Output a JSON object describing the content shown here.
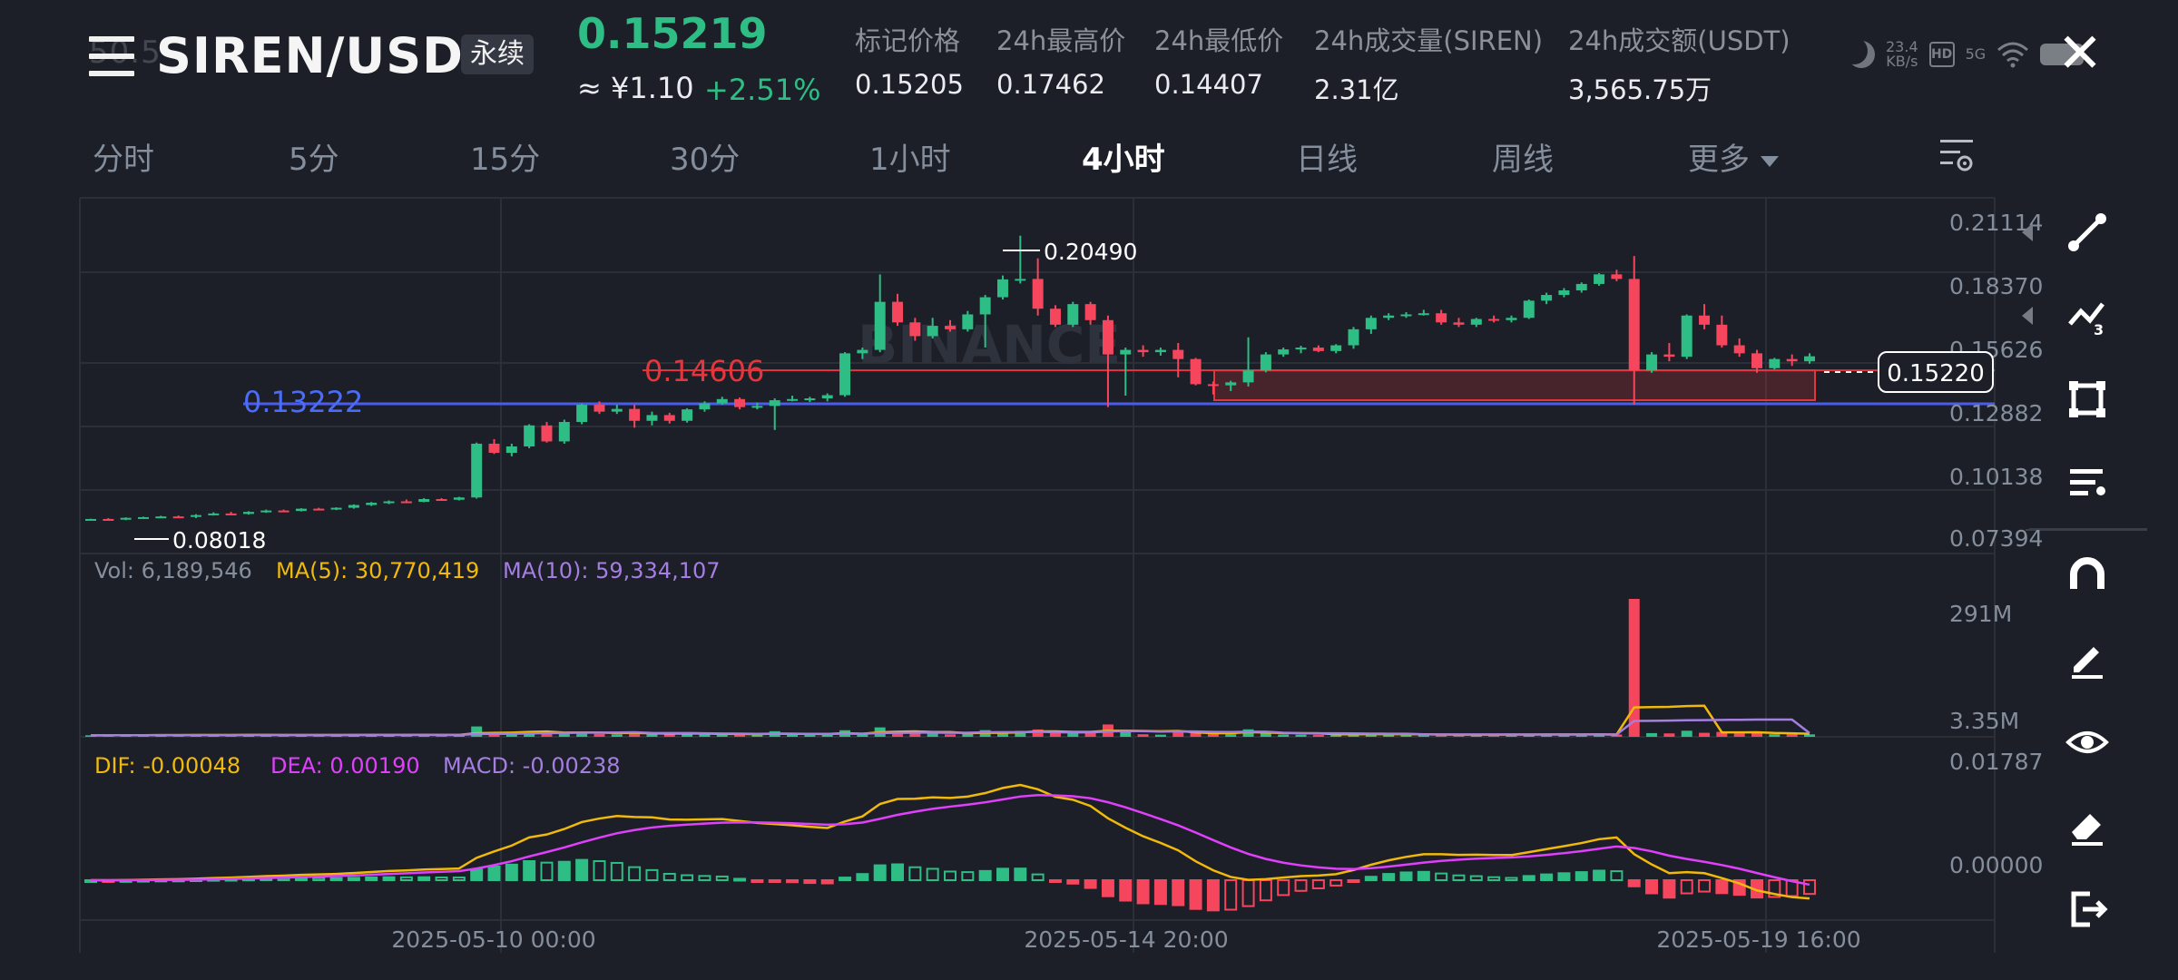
{
  "header": {
    "ghost_text": "50.5",
    "symbol": "SIREN/USDT",
    "contract_type": "永续",
    "last_price": "0.15219",
    "cny_price": "≈ ¥1.10",
    "change_pct": "+2.51%",
    "stats": [
      {
        "label": "标记价格",
        "value": "0.15205"
      },
      {
        "label": "24h最高价",
        "value": "0.17462"
      },
      {
        "label": "24h最低价",
        "value": "0.14407"
      },
      {
        "label": "24h成交量(SIREN)",
        "value": "2.31亿"
      },
      {
        "label": "24h成交额(USDT)",
        "value": "3,565.75万"
      }
    ]
  },
  "status_bar": {
    "speed": "23.4",
    "speed_unit": "KB/s",
    "hd": "HD",
    "network": "5G"
  },
  "tabs": {
    "items": [
      "分时",
      "5分",
      "15分",
      "30分",
      "1小时",
      "4小时",
      "日线",
      "周线",
      "更多"
    ],
    "active": "4小时"
  },
  "colors": {
    "up": "#2ebd85",
    "down": "#f6465d",
    "background": "#1c1f27",
    "grid": "#2b2f38",
    "ma5": "#f0b90b",
    "ma10": "#a47ee0",
    "dif": "#f0b90b",
    "dea": "#e040fb",
    "line_red": "#e4363d",
    "line_blue": "#4a5cf0"
  },
  "chart_data": {
    "type": "candlestick",
    "price_axis": [
      "0.21114",
      "0.18370",
      "0.15626",
      "0.12882",
      "0.10138",
      "0.07394"
    ],
    "price_range": [
      0.07394,
      0.21114
    ],
    "current_price_tag": "0.15220",
    "high_marker": "0.20490",
    "low_marker": "0.08018",
    "horizontal_lines": [
      {
        "label": "0.14606",
        "value": 0.14606,
        "color": "#e4363d"
      },
      {
        "label": "0.13222",
        "value": 0.13222,
        "color": "#4a5cf0"
      }
    ],
    "watermark": "BINANCE",
    "x_labels": [
      "2025-05-10 00:00",
      "2025-05-14 20:00",
      "2025-05-19 16:00"
    ],
    "candles": [
      [
        0.081,
        0.0812,
        0.0806,
        0.0811
      ],
      [
        0.0811,
        0.0815,
        0.0808,
        0.0808
      ],
      [
        0.0808,
        0.0818,
        0.0806,
        0.0816
      ],
      [
        0.0816,
        0.0821,
        0.0812,
        0.0819
      ],
      [
        0.0819,
        0.0825,
        0.0815,
        0.0822
      ],
      [
        0.0822,
        0.0826,
        0.0816,
        0.082
      ],
      [
        0.082,
        0.0832,
        0.0815,
        0.0828
      ],
      [
        0.0828,
        0.084,
        0.0826,
        0.0835
      ],
      [
        0.0835,
        0.0842,
        0.0828,
        0.0833
      ],
      [
        0.0833,
        0.0845,
        0.083,
        0.0842
      ],
      [
        0.0842,
        0.0852,
        0.0838,
        0.0848
      ],
      [
        0.0848,
        0.0852,
        0.0842,
        0.0846
      ],
      [
        0.0846,
        0.0858,
        0.0844,
        0.0856
      ],
      [
        0.0856,
        0.086,
        0.085,
        0.0854
      ],
      [
        0.0854,
        0.0862,
        0.085,
        0.086
      ],
      [
        0.086,
        0.0875,
        0.0856,
        0.0872
      ],
      [
        0.0872,
        0.0885,
        0.0868,
        0.0882
      ],
      [
        0.0882,
        0.0892,
        0.0876,
        0.0888
      ],
      [
        0.0888,
        0.0896,
        0.0882,
        0.0886
      ],
      [
        0.0886,
        0.0902,
        0.0884,
        0.0898
      ],
      [
        0.0898,
        0.0902,
        0.089,
        0.0895
      ],
      [
        0.0895,
        0.0908,
        0.0892,
        0.0905
      ],
      [
        0.0905,
        0.1145,
        0.09,
        0.114
      ],
      [
        0.114,
        0.116,
        0.1095,
        0.11
      ],
      [
        0.11,
        0.114,
        0.1085,
        0.1128
      ],
      [
        0.1128,
        0.1225,
        0.112,
        0.122
      ],
      [
        0.122,
        0.1235,
        0.1145,
        0.115
      ],
      [
        0.115,
        0.1245,
        0.114,
        0.1235
      ],
      [
        0.1235,
        0.1315,
        0.1225,
        0.131
      ],
      [
        0.131,
        0.1325,
        0.127,
        0.128
      ],
      [
        0.128,
        0.131,
        0.127,
        0.1292
      ],
      [
        0.1292,
        0.131,
        0.121,
        0.124
      ],
      [
        0.124,
        0.128,
        0.122,
        0.1265
      ],
      [
        0.1265,
        0.1275,
        0.1228,
        0.124
      ],
      [
        0.124,
        0.1295,
        0.1232,
        0.129
      ],
      [
        0.129,
        0.1325,
        0.128,
        0.1316
      ],
      [
        0.1316,
        0.1345,
        0.131,
        0.1335
      ],
      [
        0.1335,
        0.1342,
        0.129,
        0.13
      ],
      [
        0.13,
        0.132,
        0.129,
        0.1305
      ],
      [
        0.1305,
        0.1338,
        0.12,
        0.133
      ],
      [
        0.133,
        0.135,
        0.1325,
        0.1335
      ],
      [
        0.1335,
        0.1345,
        0.1322,
        0.1338
      ],
      [
        0.1338,
        0.136,
        0.1325,
        0.1352
      ],
      [
        0.1352,
        0.154,
        0.1345,
        0.1535
      ],
      [
        0.1535,
        0.156,
        0.151,
        0.155
      ],
      [
        0.155,
        0.188,
        0.154,
        0.176
      ],
      [
        0.176,
        0.1795,
        0.1655,
        0.167
      ],
      [
        0.167,
        0.169,
        0.159,
        0.161
      ],
      [
        0.161,
        0.169,
        0.16,
        0.1655
      ],
      [
        0.1655,
        0.168,
        0.163,
        0.164
      ],
      [
        0.164,
        0.172,
        0.163,
        0.1705
      ],
      [
        0.1705,
        0.179,
        0.156,
        0.178
      ],
      [
        0.178,
        0.1875,
        0.177,
        0.1858
      ],
      [
        0.1858,
        0.2049,
        0.184,
        0.186
      ],
      [
        0.186,
        0.195,
        0.17,
        0.173
      ],
      [
        0.173,
        0.1745,
        0.165,
        0.166
      ],
      [
        0.166,
        0.176,
        0.165,
        0.175
      ],
      [
        0.175,
        0.176,
        0.166,
        0.168
      ],
      [
        0.168,
        0.17,
        0.13,
        0.153
      ],
      [
        0.153,
        0.156,
        0.135,
        0.155
      ],
      [
        0.155,
        0.157,
        0.152,
        0.154
      ],
      [
        0.154,
        0.156,
        0.1525,
        0.155
      ],
      [
        0.155,
        0.158,
        0.143,
        0.151
      ],
      [
        0.151,
        0.1515,
        0.1395,
        0.14
      ],
      [
        0.14,
        0.1412,
        0.1355,
        0.1395
      ],
      [
        0.1395,
        0.1415,
        0.137,
        0.1408
      ],
      [
        0.1408,
        0.1605,
        0.139,
        0.146
      ],
      [
        0.146,
        0.154,
        0.1452,
        0.153
      ],
      [
        0.153,
        0.156,
        0.152,
        0.1552
      ],
      [
        0.1552,
        0.1568,
        0.1535,
        0.156
      ],
      [
        0.156,
        0.157,
        0.154,
        0.1545
      ],
      [
        0.1545,
        0.1575,
        0.1535,
        0.157
      ],
      [
        0.157,
        0.165,
        0.1555,
        0.164
      ],
      [
        0.164,
        0.17,
        0.162,
        0.169
      ],
      [
        0.169,
        0.171,
        0.168,
        0.17
      ],
      [
        0.17,
        0.1715,
        0.169,
        0.1705
      ],
      [
        0.1705,
        0.1725,
        0.17,
        0.171
      ],
      [
        0.171,
        0.1725,
        0.166,
        0.167
      ],
      [
        0.167,
        0.169,
        0.165,
        0.166
      ],
      [
        0.166,
        0.169,
        0.165,
        0.1685
      ],
      [
        0.1685,
        0.17,
        0.167,
        0.168
      ],
      [
        0.168,
        0.17,
        0.167,
        0.169
      ],
      [
        0.169,
        0.177,
        0.1685,
        0.1765
      ],
      [
        0.1765,
        0.18,
        0.175,
        0.179
      ],
      [
        0.179,
        0.182,
        0.178,
        0.181
      ],
      [
        0.181,
        0.1845,
        0.18,
        0.1838
      ],
      [
        0.1838,
        0.1885,
        0.183,
        0.188
      ],
      [
        0.188,
        0.19,
        0.185,
        0.186
      ],
      [
        0.186,
        0.196,
        0.131,
        0.146
      ],
      [
        0.146,
        0.154,
        0.145,
        0.153
      ],
      [
        0.153,
        0.158,
        0.15,
        0.152
      ],
      [
        0.152,
        0.1705,
        0.151,
        0.17
      ],
      [
        0.17,
        0.175,
        0.164,
        0.166
      ],
      [
        0.166,
        0.17,
        0.156,
        0.157
      ],
      [
        0.157,
        0.16,
        0.152,
        0.1535
      ],
      [
        0.1535,
        0.155,
        0.145,
        0.147
      ],
      [
        0.147,
        0.1515,
        0.1465,
        0.151
      ],
      [
        0.151,
        0.153,
        0.148,
        0.15
      ],
      [
        0.15,
        0.1535,
        0.149,
        0.1522
      ]
    ],
    "volume_panel": {
      "legend": {
        "vol": "Vol: 6,189,546",
        "ma5": "MA(5): 30,770,419",
        "ma10": "MA(10): 59,334,107"
      },
      "axis_top": "291M",
      "axis_bottom": "3.35M",
      "max": 291000000
    },
    "macd_panel": {
      "legend": {
        "dif": "DIF: -0.00048",
        "dea": "DEA: 0.00190",
        "macd": "MACD: -0.00238"
      },
      "axis_top": "0.01787",
      "axis_zero": "0.00000",
      "range": [
        -0.0056,
        0.01787
      ]
    }
  },
  "toolbar": {
    "items": [
      "trend-line-tool",
      "multi-line-tool",
      "rectangle-tool",
      "fib-tool",
      "magnet-tool",
      "pencil-tool",
      "visibility-tool",
      "eraser-tool",
      "exit-drawing-tool"
    ]
  }
}
